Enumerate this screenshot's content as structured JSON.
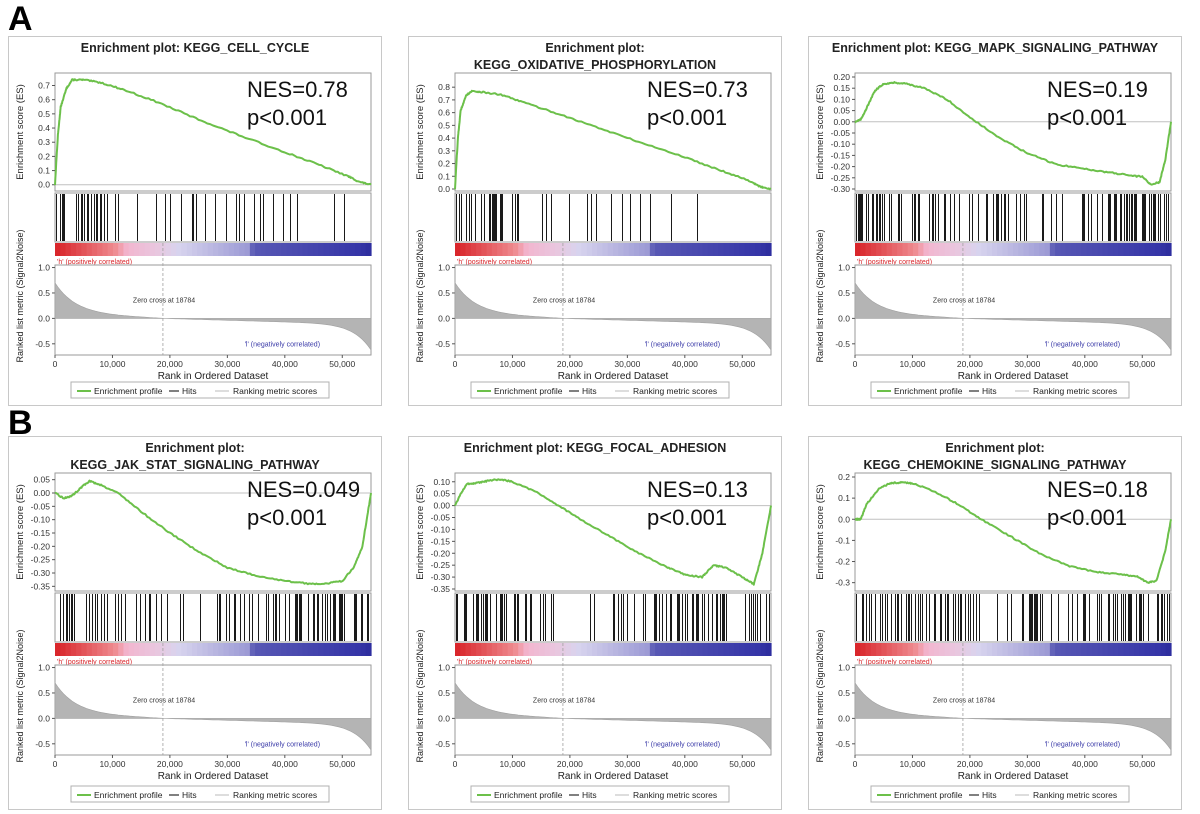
{
  "figure": {
    "panel_labels": [
      "A",
      "B"
    ]
  },
  "common": {
    "es_ylabel": "Enrichment score (ES)",
    "metric_ylabel": "Ranked list metric (Signal2Noise)",
    "xlabel": "Rank in Ordered Dataset",
    "pos_label": "'h' (positively correlated)",
    "neg_label": "'l' (negatively correlated)",
    "zero_cross": "Zero cross at 18784",
    "legend": [
      "Enrichment profile",
      "Hits",
      "Ranking metric scores"
    ],
    "x_ticks": [
      0,
      10000,
      20000,
      30000,
      40000,
      50000
    ],
    "x_tick_labels": [
      "0",
      "10,000",
      "20,000",
      "30,000",
      "40,000",
      "50,000"
    ],
    "metric_ticks": [
      "1.0",
      "0.5",
      "0.0",
      "-0.5"
    ],
    "colors": {
      "es_line": "#6cc04a",
      "hits": "#000000",
      "metric_fill": "#b4b4b4",
      "pos_red": "#d9262b",
      "neg_blue": "#2a2a9a"
    }
  },
  "chart_data": [
    {
      "type": "line",
      "title_lines": [
        "Enrichment plot: KEGG_CELL_CYCLE"
      ],
      "nes": "NES=0.78",
      "pval": "p<0.001",
      "ylim": [
        -0.03,
        0.76
      ],
      "y_ticks": [
        0.0,
        0.1,
        0.2,
        0.3,
        0.4,
        0.5,
        0.6,
        0.7
      ],
      "y_tick_labels": [
        "0.0",
        "0.1",
        "0.2",
        "0.3",
        "0.4",
        "0.5",
        "0.6",
        "0.7"
      ],
      "x": [
        0,
        500,
        1000,
        2000,
        3000,
        5000,
        8000,
        12000,
        18000,
        25000,
        32000,
        40000,
        46000,
        51000,
        53000,
        55000
      ],
      "es": [
        0,
        0.35,
        0.55,
        0.68,
        0.74,
        0.74,
        0.72,
        0.67,
        0.58,
        0.46,
        0.35,
        0.23,
        0.14,
        0.06,
        0.02,
        0.0
      ],
      "hit_density": [
        0.9,
        0.35,
        0.25,
        0.2,
        0.2,
        0.15
      ]
    },
    {
      "type": "line",
      "title_lines": [
        "Enrichment plot:",
        "KEGG_OXIDATIVE_PHOSPHORYLATION"
      ],
      "nes": "NES=0.73",
      "pval": "p<0.001",
      "ylim": [
        0.0,
        0.88
      ],
      "y_ticks": [
        0.0,
        0.1,
        0.2,
        0.3,
        0.4,
        0.5,
        0.6,
        0.7,
        0.8
      ],
      "y_tick_labels": [
        "0.0",
        "0.1",
        "0.2",
        "0.3",
        "0.4",
        "0.5",
        "0.6",
        "0.7",
        "0.8"
      ],
      "x": [
        0,
        500,
        1000,
        2000,
        3000,
        5000,
        8000,
        12000,
        18000,
        25000,
        32000,
        40000,
        46000,
        51000,
        53000,
        55000
      ],
      "es": [
        0,
        0.4,
        0.62,
        0.74,
        0.77,
        0.76,
        0.74,
        0.68,
        0.59,
        0.48,
        0.37,
        0.25,
        0.15,
        0.07,
        0.02,
        0.0
      ],
      "hit_density": [
        0.95,
        0.3,
        0.2,
        0.15,
        0.1,
        0.05
      ]
    },
    {
      "type": "line",
      "title_lines": [
        "Enrichment plot: KEGG_MAPK_SIGNALING_PATHWAY"
      ],
      "nes": "NES=0.19",
      "pval": "p<0.001",
      "ylim": [
        -0.3,
        0.2
      ],
      "y_ticks": [
        0.2,
        0.15,
        0.1,
        0.05,
        0.0,
        -0.05,
        -0.1,
        -0.15,
        -0.2,
        -0.25,
        -0.3
      ],
      "y_tick_labels": [
        "0.20",
        "0.15",
        "0.10",
        "0.05",
        "0.00",
        "-0.05",
        "-0.10",
        "-0.15",
        "-0.20",
        "-0.25",
        "-0.30"
      ],
      "x": [
        0,
        1000,
        2000,
        3500,
        5000,
        7000,
        9000,
        12000,
        16000,
        20000,
        25000,
        30000,
        35000,
        40000,
        44000,
        48000,
        50000,
        51500,
        53000,
        54000,
        55000
      ],
      "es": [
        0.0,
        0.01,
        0.06,
        0.14,
        0.17,
        0.175,
        0.17,
        0.15,
        0.1,
        0.02,
        -0.07,
        -0.14,
        -0.19,
        -0.21,
        -0.225,
        -0.24,
        -0.245,
        -0.28,
        -0.27,
        -0.17,
        0.0
      ],
      "hit_density": [
        0.9,
        0.7,
        0.5,
        0.6,
        0.7,
        0.9
      ]
    },
    {
      "type": "line",
      "title_lines": [
        "Enrichment plot:",
        "KEGG_JAK_STAT_SIGNALING_PATHWAY"
      ],
      "nes": "NES=0.049",
      "pval": "p<0.001",
      "ylim": [
        -0.36,
        0.06
      ],
      "y_ticks": [
        0.05,
        0.0,
        -0.05,
        -0.1,
        -0.15,
        -0.2,
        -0.25,
        -0.3,
        -0.35
      ],
      "y_tick_labels": [
        "0.05",
        "0.00",
        "-0.05",
        "-0.10",
        "-0.15",
        "-0.20",
        "-0.25",
        "-0.30",
        "-0.35"
      ],
      "x": [
        0,
        1500,
        3000,
        4500,
        6000,
        8000,
        11000,
        15000,
        20000,
        25000,
        30000,
        35000,
        40000,
        44000,
        47000,
        50000,
        52000,
        53500,
        55000
      ],
      "es": [
        0.0,
        -0.02,
        -0.01,
        0.02,
        0.045,
        0.03,
        0.0,
        -0.07,
        -0.15,
        -0.22,
        -0.28,
        -0.31,
        -0.33,
        -0.34,
        -0.34,
        -0.33,
        -0.28,
        -0.2,
        0.0
      ],
      "hit_density": [
        0.6,
        0.5,
        0.5,
        0.6,
        0.8,
        0.9
      ]
    },
    {
      "type": "line",
      "title_lines": [
        "Enrichment plot: KEGG_FOCAL_ADHESION"
      ],
      "nes": "NES=0.13",
      "pval": "p<0.001",
      "ylim": [
        -0.35,
        0.12
      ],
      "y_ticks": [
        0.1,
        0.05,
        0.0,
        -0.05,
        -0.1,
        -0.15,
        -0.2,
        -0.25,
        -0.3,
        -0.35
      ],
      "y_tick_labels": [
        "0.10",
        "0.05",
        "0.00",
        "-0.05",
        "-0.10",
        "-0.15",
        "-0.20",
        "-0.25",
        "-0.30",
        "-0.35"
      ],
      "x": [
        0,
        1000,
        2000,
        4000,
        6000,
        8000,
        10000,
        14000,
        18000,
        22000,
        27000,
        32000,
        37000,
        40000,
        43000,
        45000,
        47000,
        50000,
        52000,
        53500,
        55000
      ],
      "es": [
        0.0,
        0.05,
        0.09,
        0.095,
        0.105,
        0.11,
        0.1,
        0.06,
        0.0,
        -0.06,
        -0.13,
        -0.2,
        -0.26,
        -0.29,
        -0.3,
        -0.25,
        -0.26,
        -0.3,
        -0.33,
        -0.2,
        0.0
      ],
      "hit_density": [
        0.8,
        0.6,
        0.1,
        0.5,
        0.7,
        0.9
      ]
    },
    {
      "type": "line",
      "title_lines": [
        "Enrichment plot:",
        "KEGG_CHEMOKINE_SIGNALING_PATHWAY"
      ],
      "nes": "NES=0.18",
      "pval": "p<0.001",
      "ylim": [
        -0.33,
        0.2
      ],
      "y_ticks": [
        0.2,
        0.1,
        0.0,
        -0.1,
        -0.2,
        -0.3
      ],
      "y_tick_labels": [
        "0.2",
        "0.1",
        "0.0",
        "-0.1",
        "-0.2",
        "-0.3"
      ],
      "x": [
        0,
        1000,
        2000,
        4000,
        6000,
        8000,
        10000,
        14000,
        18000,
        22000,
        27000,
        32000,
        37000,
        42000,
        46000,
        49000,
        51000,
        52500,
        54000,
        55000
      ],
      "es": [
        0.0,
        0.0,
        0.07,
        0.14,
        0.17,
        0.175,
        0.17,
        0.13,
        0.07,
        0.0,
        -0.08,
        -0.16,
        -0.22,
        -0.25,
        -0.26,
        -0.27,
        -0.3,
        -0.29,
        -0.15,
        0.0
      ],
      "hit_density": [
        0.7,
        0.5,
        0.4,
        0.5,
        0.6,
        0.8
      ]
    }
  ]
}
